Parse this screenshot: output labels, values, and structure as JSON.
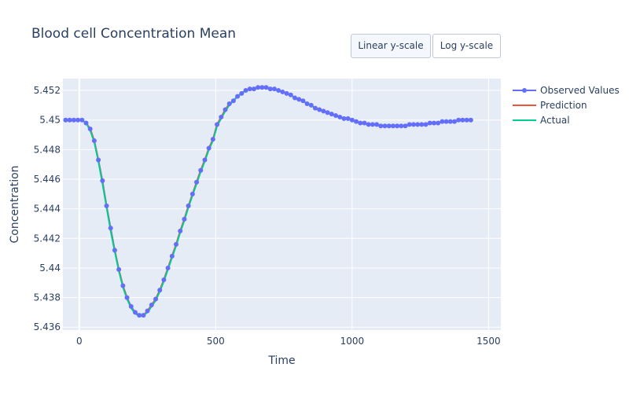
{
  "chart_data": {
    "type": "line",
    "title": "Blood cell Concentration Mean",
    "xlabel": "Time",
    "ylabel": "Concentration",
    "xlim": [
      -60,
      1545
    ],
    "ylim": [
      5.4358,
      5.4528
    ],
    "x_ticks": [
      0,
      500,
      1000,
      1500
    ],
    "x_tick_labels": [
      "0",
      "500",
      "1000",
      "1500"
    ],
    "y_ticks": [
      5.436,
      5.438,
      5.44,
      5.442,
      5.444,
      5.446,
      5.448,
      5.45,
      5.452
    ],
    "y_tick_labels": [
      "5.436",
      "5.438",
      "5.44",
      "5.442",
      "5.444",
      "5.446",
      "5.448",
      "5.45",
      "5.452"
    ],
    "grid": true,
    "legend_position": "right",
    "x": [
      -50,
      -35,
      -20,
      -5,
      10,
      25,
      40,
      55,
      70,
      85,
      100,
      115,
      130,
      145,
      160,
      175,
      190,
      205,
      220,
      235,
      250,
      265,
      280,
      295,
      310,
      325,
      340,
      355,
      370,
      385,
      400,
      415,
      430,
      445,
      460,
      475,
      490,
      505,
      520,
      535,
      550,
      565,
      580,
      595,
      610,
      625,
      640,
      655,
      670,
      685,
      700,
      715,
      730,
      745,
      760,
      775,
      790,
      805,
      820,
      835,
      850,
      865,
      880,
      895,
      910,
      925,
      940,
      955,
      970,
      985,
      1000,
      1015,
      1030,
      1045,
      1060,
      1075,
      1090,
      1105,
      1120,
      1135,
      1150,
      1165,
      1180,
      1195,
      1210,
      1225,
      1240,
      1255,
      1270,
      1285,
      1300,
      1315,
      1330,
      1345,
      1360,
      1375,
      1390,
      1405,
      1420,
      1435
    ],
    "series": [
      {
        "name": "Observed Values",
        "color": "#636efa",
        "mode": "lines+markers",
        "values": [
          5.45,
          5.45,
          5.45,
          5.45,
          5.45,
          5.4498,
          5.4494,
          5.4486,
          5.4473,
          5.4459,
          5.4442,
          5.4427,
          5.4412,
          5.4399,
          5.4388,
          5.438,
          5.4374,
          5.437,
          5.4368,
          5.4368,
          5.4371,
          5.4375,
          5.4379,
          5.4385,
          5.4392,
          5.44,
          5.4408,
          5.4416,
          5.4425,
          5.4433,
          5.4442,
          5.445,
          5.4458,
          5.4466,
          5.4473,
          5.4481,
          5.4487,
          5.4497,
          5.4502,
          5.4507,
          5.4511,
          5.4513,
          5.4516,
          5.4518,
          5.452,
          5.4521,
          5.4521,
          5.4522,
          5.4522,
          5.4522,
          5.4521,
          5.4521,
          5.452,
          5.4519,
          5.4518,
          5.4517,
          5.4515,
          5.4514,
          5.4513,
          5.4511,
          5.451,
          5.4508,
          5.4507,
          5.4506,
          5.4505,
          5.4504,
          5.4503,
          5.4502,
          5.4501,
          5.4501,
          5.45,
          5.4499,
          5.4498,
          5.4498,
          5.4497,
          5.4497,
          5.4497,
          5.4496,
          5.4496,
          5.4496,
          5.4496,
          5.4496,
          5.4496,
          5.4496,
          5.4497,
          5.4497,
          5.4497,
          5.4497,
          5.4497,
          5.4498,
          5.4498,
          5.4498,
          5.4499,
          5.4499,
          5.4499,
          5.4499,
          5.45,
          5.45,
          5.45,
          5.45
        ]
      },
      {
        "name": "Prediction",
        "color": "#ef553b",
        "mode": "lines",
        "values": [
          5.45,
          5.45,
          5.45,
          5.45,
          5.45,
          5.4498,
          5.4494,
          5.4486,
          5.4473,
          5.4458,
          5.4442,
          5.4426,
          5.4412,
          5.4399,
          5.4388,
          5.438,
          5.4373,
          5.437,
          5.4368,
          5.4368,
          5.4371,
          5.4375,
          5.4379,
          5.4385,
          5.4392,
          5.44,
          5.4408,
          5.4416,
          5.4425,
          5.4433,
          5.4442,
          5.445,
          5.4458,
          5.4466,
          5.4473,
          5.4481,
          5.4487,
          5.4497,
          5.4502,
          5.4507,
          5.4511,
          5.4513,
          5.4516,
          5.4518,
          5.452,
          5.4521,
          5.4521,
          5.4522,
          5.4522,
          5.4522,
          5.4521,
          5.4521,
          5.452,
          5.4519,
          5.4518,
          5.4517,
          5.4515,
          5.4514,
          5.4513,
          5.4511,
          5.451,
          5.4508,
          5.4507,
          5.4506,
          5.4505,
          5.4504,
          5.4503,
          5.4502,
          5.4501,
          5.4501,
          5.45,
          5.4499,
          5.4498,
          5.4498,
          5.4497,
          5.4497,
          5.4497,
          5.4496,
          5.4496,
          5.4496,
          5.4496,
          5.4496,
          5.4496,
          5.4496,
          5.4497,
          5.4497,
          5.4497,
          5.4497,
          5.4497,
          5.4498,
          5.4498,
          5.4498,
          5.4499,
          5.4499,
          5.4499,
          5.4499,
          5.45,
          5.45,
          5.45,
          5.45
        ]
      },
      {
        "name": "Actual",
        "color": "#00cc96",
        "mode": "lines",
        "values": [
          5.45,
          5.45,
          5.45,
          5.45,
          5.45,
          5.4498,
          5.4493,
          5.4485,
          5.4472,
          5.4457,
          5.4441,
          5.4425,
          5.4411,
          5.4398,
          5.4387,
          5.4379,
          5.4373,
          5.4369,
          5.4368,
          5.4368,
          5.437,
          5.4374,
          5.4378,
          5.4384,
          5.4391,
          5.4399,
          5.4407,
          5.4415,
          5.4424,
          5.4432,
          5.4441,
          5.4449,
          5.4457,
          5.4465,
          5.4472,
          5.448,
          5.4486,
          5.4496,
          5.4501,
          5.4506,
          5.451,
          5.4513,
          5.4516,
          5.4518,
          5.452,
          5.4521,
          5.4521,
          5.4522,
          5.4522,
          5.4522,
          5.4521,
          5.4521,
          5.452,
          5.4519,
          5.4518,
          5.4517,
          5.4515,
          5.4514,
          5.4513,
          5.4511,
          5.451,
          5.4508,
          5.4507,
          5.4506,
          5.4505,
          5.4504,
          5.4503,
          5.4502,
          5.4501,
          5.4501,
          5.45,
          5.4499,
          5.4498,
          5.4498,
          5.4497,
          5.4497,
          5.4497,
          5.4496,
          5.4496,
          5.4496,
          5.4496,
          5.4496,
          5.4496,
          5.4496,
          5.4497,
          5.4497,
          5.4497,
          5.4497,
          5.4497,
          5.4498,
          5.4498,
          5.4498,
          5.4499,
          5.4499,
          5.4499,
          5.4499,
          5.45,
          5.45,
          5.45,
          5.45
        ]
      }
    ]
  },
  "controls": {
    "linear_label": "Linear y-scale",
    "log_label": "Log y-scale",
    "active": "linear"
  },
  "colors": {
    "plot_bg": "#e5ecf6",
    "grid": "#ffffff",
    "text": "#2a3f5f"
  }
}
